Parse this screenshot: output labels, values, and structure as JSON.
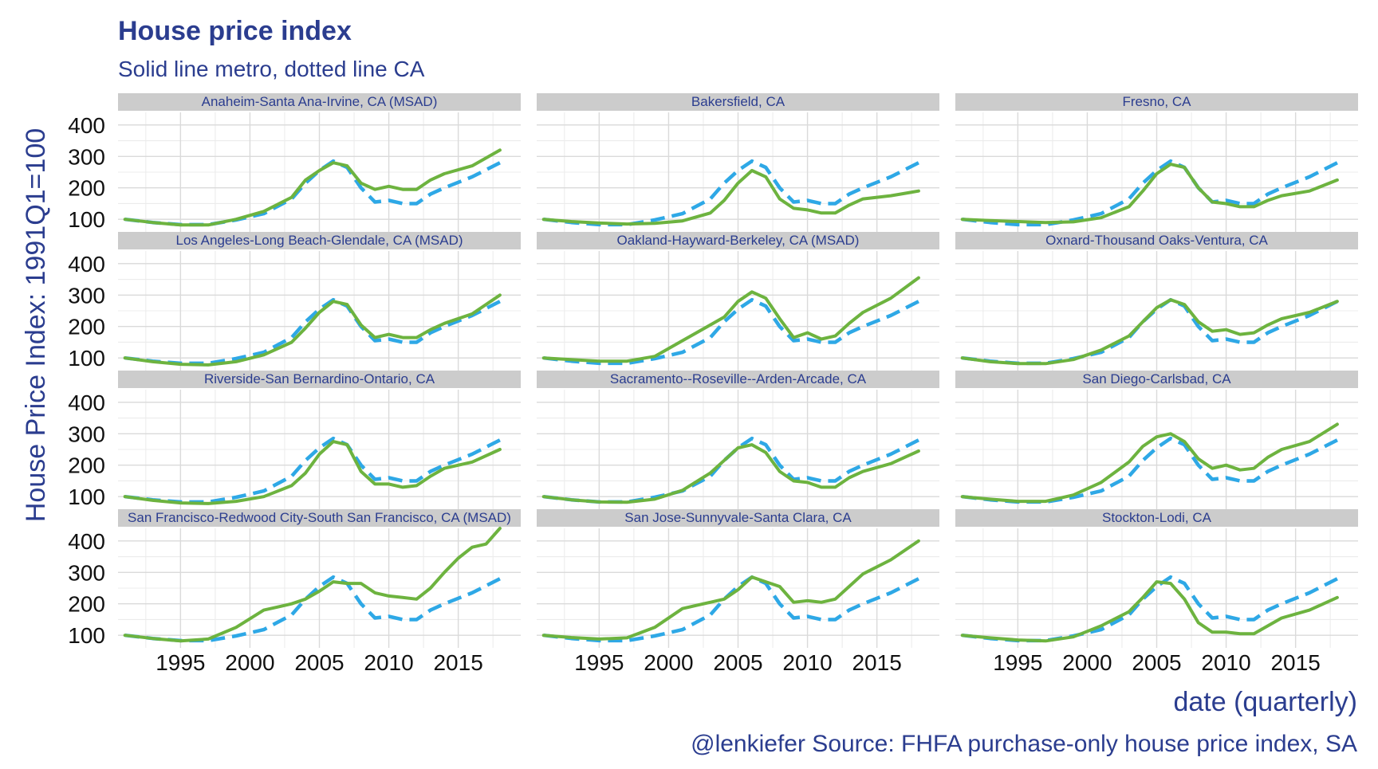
{
  "colors": {
    "title": "#2b3d8f",
    "metro_line": "#6db33f",
    "ca_line": "#2ea8e6",
    "strip_bg": "#cccccc",
    "grid": "#dadada"
  },
  "chart_data": {
    "type": "line",
    "title": "House price index",
    "subtitle": "Solid line metro, dotted line CA",
    "xlabel": "date (quarterly)",
    "ylabel": "House Price Index: 1991Q1=100",
    "caption": "@lenkiefer Source: FHFA purchase-only house price index, SA",
    "xlim": [
      1990.5,
      2019.5
    ],
    "ylim": [
      60,
      440
    ],
    "x_ticks": [
      1995,
      2000,
      2005,
      2010,
      2015
    ],
    "y_ticks": [
      100,
      200,
      300,
      400
    ],
    "grid": true,
    "ca_series": {
      "name": "CA",
      "x": [
        1991,
        1993,
        1995,
        1997,
        1999,
        2001,
        2003,
        2004,
        2005,
        2006,
        2007,
        2008,
        2009,
        2010,
        2011,
        2012,
        2013,
        2014,
        2016,
        2018
      ],
      "values": [
        100,
        90,
        83,
        83,
        98,
        118,
        165,
        215,
        255,
        285,
        265,
        200,
        155,
        160,
        150,
        150,
        180,
        200,
        235,
        280
      ]
    },
    "panels": [
      {
        "title": "Anaheim-Santa Ana-Irvine, CA (MSAD)",
        "x": [
          1991,
          1993,
          1995,
          1997,
          1999,
          2001,
          2003,
          2004,
          2005,
          2006,
          2007,
          2008,
          2009,
          2010,
          2011,
          2012,
          2013,
          2014,
          2016,
          2018
        ],
        "values": [
          100,
          90,
          82,
          82,
          100,
          125,
          170,
          225,
          255,
          280,
          270,
          215,
          195,
          205,
          195,
          195,
          225,
          245,
          270,
          320
        ]
      },
      {
        "title": "Bakersfield, CA",
        "x": [
          1991,
          1993,
          1995,
          1997,
          1999,
          2001,
          2003,
          2004,
          2005,
          2006,
          2007,
          2008,
          2009,
          2010,
          2011,
          2012,
          2013,
          2014,
          2016,
          2018
        ],
        "values": [
          100,
          93,
          88,
          85,
          87,
          95,
          120,
          160,
          215,
          255,
          235,
          165,
          135,
          130,
          120,
          120,
          145,
          165,
          175,
          190
        ]
      },
      {
        "title": "Fresno, CA",
        "x": [
          1991,
          1993,
          1995,
          1997,
          1999,
          2001,
          2003,
          2004,
          2005,
          2006,
          2007,
          2008,
          2009,
          2010,
          2011,
          2012,
          2013,
          2014,
          2016,
          2018
        ],
        "values": [
          100,
          96,
          93,
          90,
          92,
          105,
          140,
          190,
          245,
          275,
          265,
          200,
          155,
          150,
          140,
          140,
          160,
          175,
          190,
          225
        ]
      },
      {
        "title": "Los Angeles-Long Beach-Glendale, CA (MSAD)",
        "x": [
          1991,
          1993,
          1995,
          1997,
          1999,
          2001,
          2003,
          2004,
          2005,
          2006,
          2007,
          2008,
          2009,
          2010,
          2011,
          2012,
          2013,
          2014,
          2016,
          2018
        ],
        "values": [
          100,
          88,
          80,
          78,
          88,
          110,
          150,
          195,
          245,
          280,
          270,
          205,
          165,
          175,
          165,
          165,
          190,
          210,
          240,
          300
        ]
      },
      {
        "title": "Oakland-Hayward-Berkeley, CA (MSAD)",
        "x": [
          1991,
          1993,
          1995,
          1997,
          1999,
          2001,
          2003,
          2004,
          2005,
          2006,
          2007,
          2008,
          2009,
          2010,
          2011,
          2012,
          2013,
          2014,
          2016,
          2018
        ],
        "values": [
          100,
          95,
          90,
          90,
          105,
          155,
          205,
          230,
          280,
          310,
          290,
          225,
          165,
          180,
          160,
          170,
          210,
          245,
          290,
          355
        ]
      },
      {
        "title": "Oxnard-Thousand Oaks-Ventura, CA",
        "x": [
          1991,
          1993,
          1995,
          1997,
          1999,
          2001,
          2003,
          2004,
          2005,
          2006,
          2007,
          2008,
          2009,
          2010,
          2011,
          2012,
          2013,
          2014,
          2016,
          2018
        ],
        "values": [
          100,
          88,
          82,
          82,
          95,
          125,
          170,
          215,
          260,
          285,
          270,
          215,
          185,
          190,
          175,
          180,
          205,
          225,
          245,
          280
        ]
      },
      {
        "title": "Riverside-San Bernardino-Ontario, CA",
        "x": [
          1991,
          1993,
          1995,
          1997,
          1999,
          2001,
          2003,
          2004,
          2005,
          2006,
          2007,
          2008,
          2009,
          2010,
          2011,
          2012,
          2013,
          2014,
          2016,
          2018
        ],
        "values": [
          100,
          88,
          80,
          78,
          85,
          100,
          135,
          175,
          235,
          275,
          265,
          180,
          140,
          140,
          130,
          135,
          165,
          190,
          210,
          250
        ]
      },
      {
        "title": "Sacramento--Roseville--Arden-Arcade, CA",
        "x": [
          1991,
          1993,
          1995,
          1997,
          1999,
          2001,
          2003,
          2004,
          2005,
          2006,
          2007,
          2008,
          2009,
          2010,
          2011,
          2012,
          2013,
          2014,
          2016,
          2018
        ],
        "values": [
          100,
          90,
          83,
          82,
          92,
          120,
          175,
          215,
          255,
          265,
          240,
          180,
          150,
          145,
          130,
          130,
          160,
          180,
          205,
          245
        ]
      },
      {
        "title": "San Diego-Carlsbad, CA",
        "x": [
          1991,
          1993,
          1995,
          1997,
          1999,
          2001,
          2003,
          2004,
          2005,
          2006,
          2007,
          2008,
          2009,
          2010,
          2011,
          2012,
          2013,
          2014,
          2016,
          2018
        ],
        "values": [
          100,
          92,
          85,
          85,
          105,
          145,
          210,
          260,
          290,
          300,
          275,
          220,
          190,
          200,
          185,
          190,
          225,
          250,
          275,
          330
        ]
      },
      {
        "title": "San Francisco-Redwood City-South San Francisco, CA (MSAD)",
        "x": [
          1991,
          1993,
          1995,
          1997,
          1999,
          2001,
          2002,
          2003,
          2004,
          2005,
          2006,
          2007,
          2008,
          2009,
          2010,
          2011,
          2012,
          2013,
          2014,
          2015,
          2016,
          2017,
          2018
        ],
        "values": [
          100,
          90,
          82,
          88,
          125,
          180,
          190,
          200,
          215,
          240,
          270,
          265,
          265,
          235,
          225,
          220,
          215,
          250,
          300,
          345,
          380,
          390,
          440
        ]
      },
      {
        "title": "San Jose-Sunnyvale-Santa Clara, CA",
        "x": [
          1991,
          1993,
          1995,
          1997,
          1999,
          2001,
          2002,
          2003,
          2004,
          2005,
          2006,
          2007,
          2008,
          2009,
          2010,
          2011,
          2012,
          2013,
          2014,
          2016,
          2018
        ],
        "values": [
          100,
          93,
          88,
          92,
          125,
          185,
          195,
          205,
          215,
          245,
          285,
          270,
          255,
          205,
          210,
          205,
          215,
          255,
          295,
          340,
          400
        ]
      },
      {
        "title": "Stockton-Lodi, CA",
        "x": [
          1991,
          1993,
          1995,
          1997,
          1999,
          2001,
          2003,
          2004,
          2005,
          2006,
          2007,
          2008,
          2009,
          2010,
          2011,
          2012,
          2013,
          2014,
          2016,
          2018
        ],
        "values": [
          100,
          92,
          85,
          82,
          95,
          130,
          175,
          220,
          270,
          265,
          215,
          140,
          110,
          110,
          105,
          105,
          130,
          155,
          180,
          220
        ]
      }
    ]
  }
}
